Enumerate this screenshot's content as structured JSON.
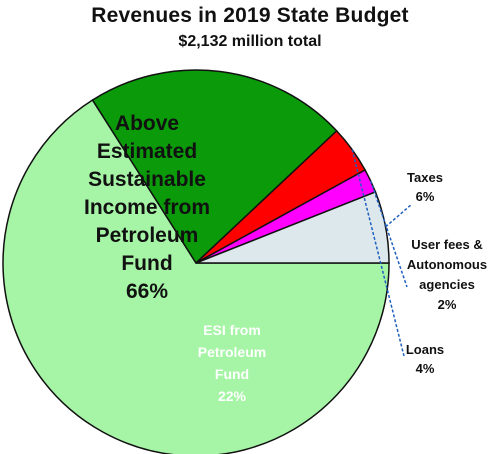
{
  "chart_data": {
    "type": "pie",
    "title": "Revenues in 2019 State Budget",
    "subtitle": "$2,132 million total",
    "slices": [
      {
        "label_lines": [
          "Above",
          "Estimated",
          "Sustainable",
          "Income from",
          "Petroleum",
          "Fund"
        ],
        "percent_label": "66%",
        "value": 66,
        "color": "#a6f5a6",
        "label_color": "#111111"
      },
      {
        "label_lines": [
          "ESI from",
          "Petroleum",
          "Fund"
        ],
        "percent_label": "22%",
        "value": 22,
        "color": "#0a9a0a",
        "label_color": "#ffffff"
      },
      {
        "label_lines": [
          "Loans"
        ],
        "percent_label": "4%",
        "value": 4,
        "color": "#ff0000",
        "label_color": "#111111"
      },
      {
        "label_lines": [
          "User fees &",
          "Autonomous",
          "agencies"
        ],
        "percent_label": "2%",
        "value": 2,
        "color": "#ff00ff",
        "label_color": "#111111"
      },
      {
        "label_lines": [
          "Taxes"
        ],
        "percent_label": "6%",
        "value": 6,
        "color": "#dde8ec",
        "label_color": "#111111"
      }
    ]
  }
}
